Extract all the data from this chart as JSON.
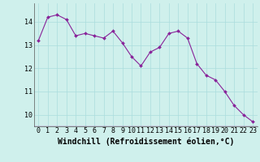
{
  "x": [
    0,
    1,
    2,
    3,
    4,
    5,
    6,
    7,
    8,
    9,
    10,
    11,
    12,
    13,
    14,
    15,
    16,
    17,
    18,
    19,
    20,
    21,
    22,
    23
  ],
  "y": [
    13.2,
    14.2,
    14.3,
    14.1,
    13.4,
    13.5,
    13.4,
    13.3,
    13.6,
    13.1,
    12.5,
    12.1,
    12.7,
    12.9,
    13.5,
    13.6,
    13.3,
    12.2,
    11.7,
    11.5,
    11.0,
    10.4,
    10.0,
    9.7
  ],
  "line_color": "#882299",
  "marker": "D",
  "marker_size": 2.0,
  "linewidth": 0.8,
  "bg_color": "#cff0ec",
  "grid_color": "#aadddd",
  "xlabel": "Windchill (Refroidissement éolien,°C)",
  "xlabel_fontsize": 7,
  "tick_fontsize": 6,
  "ylim": [
    9.5,
    14.8
  ],
  "yticks": [
    10,
    11,
    12,
    13,
    14
  ],
  "xlim": [
    -0.5,
    23.5
  ],
  "xticks": [
    0,
    1,
    2,
    3,
    4,
    5,
    6,
    7,
    8,
    9,
    10,
    11,
    12,
    13,
    14,
    15,
    16,
    17,
    18,
    19,
    20,
    21,
    22,
    23
  ]
}
